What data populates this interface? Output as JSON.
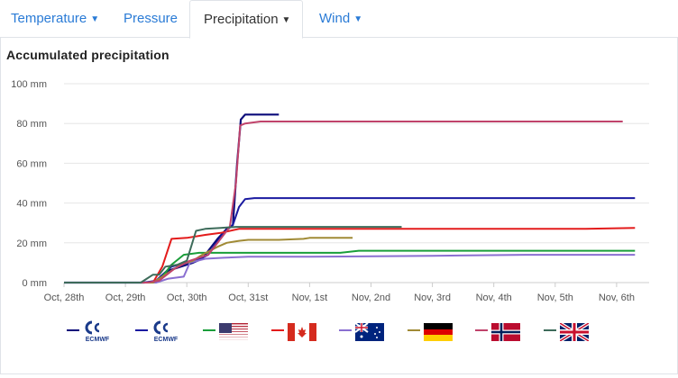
{
  "tabs": [
    {
      "label": "Temperature",
      "dropdown": true,
      "active": false
    },
    {
      "label": "Pressure",
      "dropdown": false,
      "active": false
    },
    {
      "label": "Precipitation",
      "dropdown": true,
      "active": true
    },
    {
      "label": "Wind",
      "dropdown": true,
      "active": false
    }
  ],
  "colors": {
    "tab_link": "#2a7bd6",
    "grid": "#e6e6e6"
  },
  "chart_data": {
    "type": "line",
    "title": "Accumulated precipitation",
    "xlabel": "",
    "ylabel": "",
    "ylim": [
      0,
      100
    ],
    "yticks": [
      "0 mm",
      "20 mm",
      "40 mm",
      "60 mm",
      "80 mm",
      "100 mm"
    ],
    "xlim": [
      0,
      9.55
    ],
    "xticks": [
      "Oct, 28th",
      "Oct, 29th",
      "Oct, 30th",
      "Oct, 31st",
      "Nov, 1st",
      "Nov, 2nd",
      "Nov, 3rd",
      "Nov, 4th",
      "Nov, 5th",
      "Nov, 6th"
    ],
    "x_unit": "days since Oct 28th",
    "grid": "horizontal",
    "legend_position": "bottom",
    "series": [
      {
        "model": "ECMWF",
        "legend_logo": "ecmwf",
        "legend_text": "ECMWF",
        "color": "#0a0a7a",
        "points": [
          [
            0,
            0
          ],
          [
            1.3,
            0
          ],
          [
            1.5,
            0.5
          ],
          [
            1.7,
            6
          ],
          [
            1.9,
            8
          ],
          [
            2.1,
            10
          ],
          [
            2.25,
            12
          ],
          [
            2.5,
            22
          ],
          [
            2.65,
            27
          ],
          [
            2.75,
            29
          ],
          [
            2.82,
            60
          ],
          [
            2.88,
            82
          ],
          [
            2.95,
            84.5
          ],
          [
            3.3,
            84.5
          ],
          [
            3.5,
            84.5
          ]
        ]
      },
      {
        "model": "ECMWF",
        "legend_logo": "ecmwf",
        "legend_text": "ECMWF",
        "color": "#1a1aa0",
        "points": [
          [
            0,
            0
          ],
          [
            1.3,
            0
          ],
          [
            1.5,
            1
          ],
          [
            1.75,
            8
          ],
          [
            2.0,
            10
          ],
          [
            2.15,
            11
          ],
          [
            2.35,
            14
          ],
          [
            2.6,
            25
          ],
          [
            2.75,
            29
          ],
          [
            2.85,
            38
          ],
          [
            2.95,
            42
          ],
          [
            3.1,
            42.5
          ],
          [
            5,
            42.5
          ],
          [
            7,
            42.5
          ],
          [
            9.3,
            42.5
          ]
        ]
      },
      {
        "model": "USA",
        "legend_logo": "flag-usa",
        "color": "#1a9e3a",
        "points": [
          [
            0,
            0
          ],
          [
            1.4,
            0
          ],
          [
            1.55,
            1
          ],
          [
            1.75,
            9
          ],
          [
            1.95,
            14
          ],
          [
            2.2,
            15
          ],
          [
            3.0,
            15
          ],
          [
            4.0,
            15
          ],
          [
            4.5,
            15
          ],
          [
            4.8,
            16
          ],
          [
            6,
            16
          ],
          [
            8,
            16
          ],
          [
            9.3,
            16
          ]
        ]
      },
      {
        "model": "Canada",
        "legend_logo": "flag-canada",
        "color": "#e31b1b",
        "points": [
          [
            0,
            0
          ],
          [
            1.45,
            0
          ],
          [
            1.6,
            8
          ],
          [
            1.75,
            22
          ],
          [
            2.0,
            22.5
          ],
          [
            2.3,
            24
          ],
          [
            2.55,
            25
          ],
          [
            2.85,
            27
          ],
          [
            3.2,
            27
          ],
          [
            5,
            27
          ],
          [
            8.5,
            27
          ],
          [
            9.3,
            27.5
          ]
        ]
      },
      {
        "model": "Australia",
        "legend_logo": "flag-australia",
        "color": "#8a6fd1",
        "points": [
          [
            0,
            0
          ],
          [
            1.5,
            0
          ],
          [
            1.7,
            2
          ],
          [
            1.95,
            3
          ],
          [
            2.05,
            10
          ],
          [
            2.3,
            12
          ],
          [
            2.6,
            12.5
          ],
          [
            3.0,
            13
          ],
          [
            4,
            13
          ],
          [
            6,
            13.5
          ],
          [
            7.5,
            14
          ],
          [
            9.3,
            14
          ]
        ]
      },
      {
        "model": "Germany",
        "legend_logo": "flag-germany",
        "color": "#a08a35",
        "points": [
          [
            0,
            0
          ],
          [
            1.45,
            0
          ],
          [
            1.6,
            3
          ],
          [
            1.9,
            9
          ],
          [
            2.1,
            11
          ],
          [
            2.25,
            14
          ],
          [
            2.5,
            18
          ],
          [
            2.65,
            20
          ],
          [
            2.85,
            21
          ],
          [
            3.0,
            21.5
          ],
          [
            3.5,
            21.5
          ],
          [
            3.9,
            22
          ],
          [
            4.0,
            22.5
          ],
          [
            4.7,
            22.5
          ]
        ]
      },
      {
        "model": "Norway",
        "legend_logo": "flag-norway",
        "color": "#c0436b",
        "points": [
          [
            0,
            0
          ],
          [
            1.35,
            0
          ],
          [
            1.55,
            1
          ],
          [
            1.8,
            7
          ],
          [
            2.05,
            11
          ],
          [
            2.35,
            14
          ],
          [
            2.55,
            22
          ],
          [
            2.7,
            28
          ],
          [
            2.8,
            50
          ],
          [
            2.87,
            79
          ],
          [
            2.95,
            80
          ],
          [
            3.2,
            81
          ],
          [
            4.5,
            81
          ],
          [
            6,
            81
          ],
          [
            8,
            81
          ],
          [
            9.1,
            81
          ]
        ]
      },
      {
        "model": "United Kingdom",
        "legend_logo": "flag-uk",
        "color": "#3d6b5a",
        "points": [
          [
            0,
            0
          ],
          [
            1.25,
            0
          ],
          [
            1.35,
            2
          ],
          [
            1.45,
            4
          ],
          [
            1.55,
            4
          ],
          [
            1.65,
            8
          ],
          [
            1.85,
            9
          ],
          [
            2.0,
            11
          ],
          [
            2.15,
            26
          ],
          [
            2.3,
            27
          ],
          [
            2.55,
            27.5
          ],
          [
            2.8,
            28
          ],
          [
            3.5,
            28
          ],
          [
            5,
            28
          ],
          [
            5.5,
            28
          ]
        ]
      }
    ]
  }
}
